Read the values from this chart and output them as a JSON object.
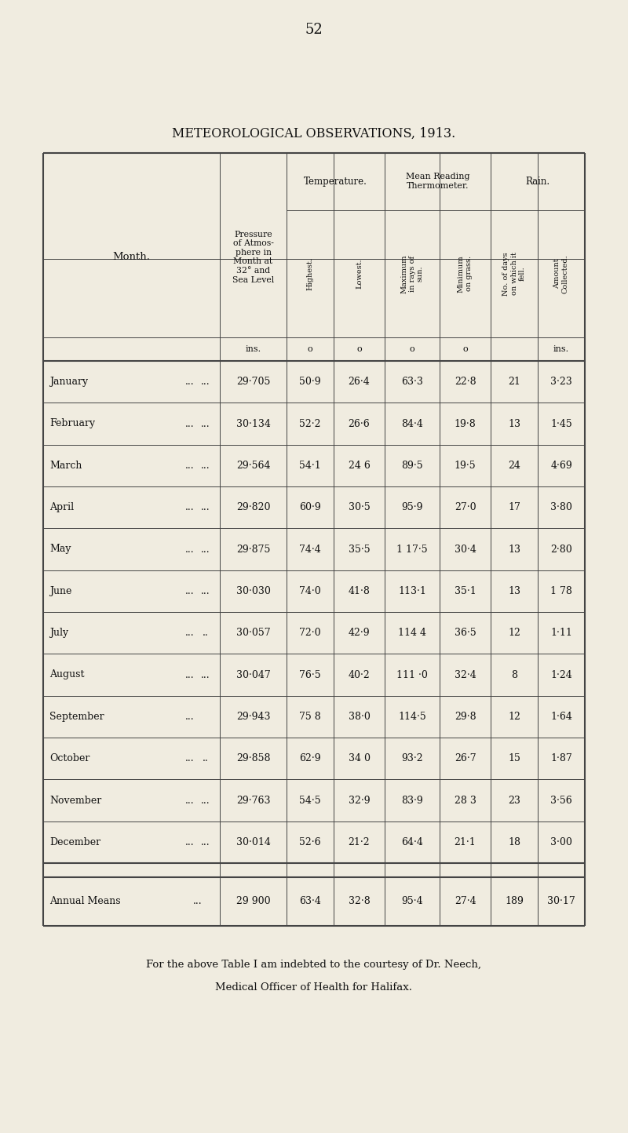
{
  "page_number": "52",
  "title": "METEOROLOGICAL OBSERVATIONS, 1913.",
  "background_color": "#f0ece0",
  "text_color": "#111111",
  "months": [
    [
      "January",
      "...",
      "...",
      "29·705",
      "50·9",
      "26·4",
      "63·3",
      "22·8",
      "21",
      "3·23"
    ],
    [
      "February",
      "...",
      "...",
      "30·134",
      "52·2",
      "26·6",
      "84·4",
      "19·8",
      "13",
      "1·45"
    ],
    [
      "March",
      "...",
      "...",
      "29·564",
      "54·1",
      "24 6",
      "89·5",
      "19·5",
      "24",
      "4·69"
    ],
    [
      "April",
      "...",
      "...",
      "29·820",
      "60·9",
      "30·5",
      "95·9",
      "27·0",
      "17",
      "3·80"
    ],
    [
      "May",
      "...",
      "...",
      "29·875",
      "74·4",
      "35·5",
      "1 17·5",
      "30·4",
      "13",
      "2·80"
    ],
    [
      "June",
      "...",
      "...",
      "30·030",
      "74·0",
      "41·8",
      "113·1",
      "35·1",
      "13",
      "1 78"
    ],
    [
      "July",
      "...",
      "..",
      "30·057",
      "72·0",
      "42·9",
      "114 4",
      "36·5",
      "12",
      "1·11"
    ],
    [
      "August",
      "...",
      "...",
      "30·047",
      "76·5",
      "40·2",
      "111 ·0",
      "32·4",
      "8",
      "1·24"
    ],
    [
      "September",
      "...",
      "",
      "29·943",
      "75 8",
      "38·0",
      "114·5",
      "29·8",
      "12",
      "1·64"
    ],
    [
      "October",
      "...",
      "..",
      "29·858",
      "62·9",
      "34 0",
      "93·2",
      "26·7",
      "15",
      "1·87"
    ],
    [
      "November",
      "...",
      "...",
      "29·763",
      "54·5",
      "32·9",
      "83·9",
      "28 3",
      "23",
      "3·56"
    ],
    [
      "December",
      "...",
      "...",
      "30·014",
      "52·6",
      "21·2",
      "64·4",
      "21·1",
      "18",
      "3·00"
    ]
  ],
  "annual": [
    "Annual Means",
    "...",
    "29 900",
    "63·4",
    "32·8",
    "95·4",
    "27·4",
    "189",
    "30·17"
  ],
  "footer_line1": "For the above Table I am indebted to the courtesy of Dr. Neech,",
  "footer_line2": "Medical Officer of Health for Halifax."
}
